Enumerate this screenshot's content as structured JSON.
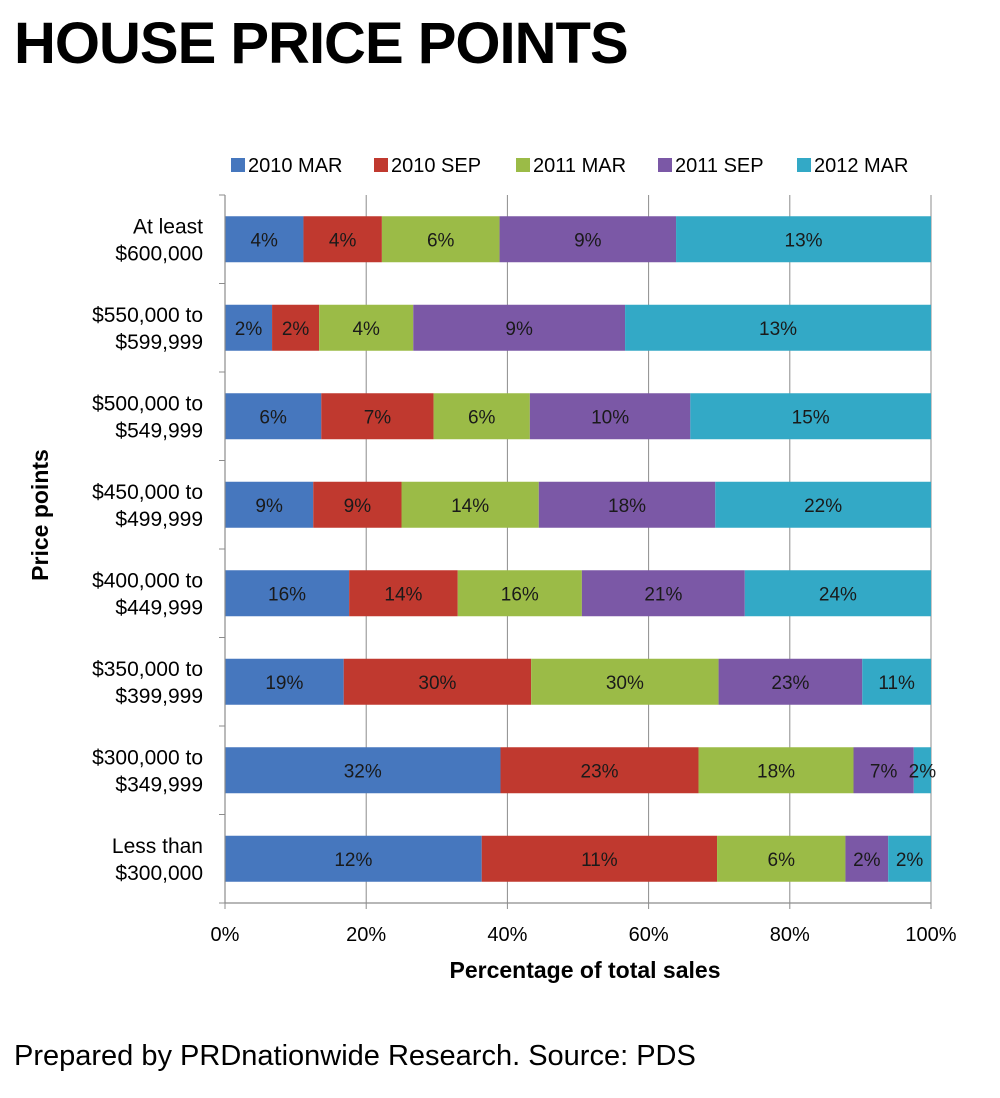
{
  "page": {
    "title": "HOUSE PRICE POINTS",
    "footer": "Prepared by PRDnationwide Research. Source: PDS"
  },
  "chart_data": {
    "type": "bar",
    "orientation": "horizontal",
    "stacked": "100%",
    "title": "HOUSE PRICE POINTS",
    "xlabel": "Percentage of total sales",
    "ylabel": "Price points",
    "xlim": [
      0,
      100
    ],
    "x_ticks": [
      "0%",
      "20%",
      "40%",
      "60%",
      "80%",
      "100%"
    ],
    "grid": "vertical",
    "legend_position": "top",
    "categories": [
      [
        "At least",
        "$600,000"
      ],
      [
        "$550,000 to",
        "$599,999"
      ],
      [
        "$500,000 to",
        "$549,999"
      ],
      [
        "$450,000 to",
        "$499,999"
      ],
      [
        "$400,000 to",
        "$449,999"
      ],
      [
        "$350,000 to",
        "$399,999"
      ],
      [
        "$300,000 to",
        "$349,999"
      ],
      [
        "Less than",
        "$300,000"
      ]
    ],
    "series": [
      {
        "name": "2010 MAR",
        "color": "#4677BE",
        "values": [
          4,
          2,
          6,
          9,
          16,
          19,
          32,
          12
        ]
      },
      {
        "name": "2010 SEP",
        "color": "#C0392F",
        "values": [
          4,
          2,
          7,
          9,
          14,
          30,
          23,
          11
        ]
      },
      {
        "name": "2011 MAR",
        "color": "#9BBB47",
        "values": [
          6,
          4,
          6,
          14,
          16,
          30,
          18,
          6
        ]
      },
      {
        "name": "2011 SEP",
        "color": "#7B58A6",
        "values": [
          9,
          9,
          10,
          18,
          21,
          23,
          7,
          2
        ]
      },
      {
        "name": "2012 MAR",
        "color": "#33A9C6",
        "values": [
          13,
          13,
          15,
          22,
          24,
          11,
          2,
          2
        ]
      }
    ]
  }
}
